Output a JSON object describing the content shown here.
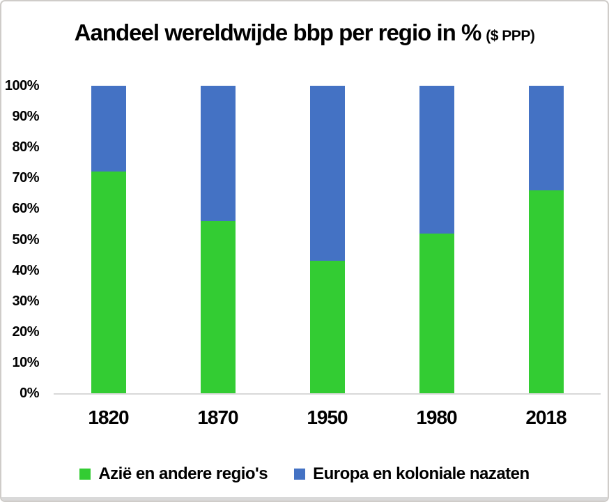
{
  "title": {
    "main": "Aandeel wereldwijde bbp per regio in %",
    "suffix": "($ PPP)"
  },
  "colors": {
    "series_green": "#33cc33",
    "series_blue": "#4472c4",
    "axis_line": "#d9d9d9",
    "text": "#000000"
  },
  "chart_data": {
    "type": "bar",
    "stacked": true,
    "title": "Aandeel wereldwijde bbp per regio in % ($ PPP)",
    "categories": [
      "1820",
      "1870",
      "1950",
      "1980",
      "2018"
    ],
    "series": [
      {
        "name": "Azië en andere regio's",
        "color": "#33cc33",
        "values": [
          72,
          56,
          43,
          52,
          66
        ]
      },
      {
        "name": "Europa en koloniale nazaten",
        "color": "#4472c4",
        "values": [
          28,
          44,
          57,
          48,
          34
        ]
      }
    ],
    "xlabel": "",
    "ylabel": "",
    "ylim": [
      0,
      100
    ],
    "ytick_step": 10,
    "ytick_labels_top_to_bottom": [
      "100%",
      "90%",
      "80%",
      "70%",
      "60%",
      "50%",
      "40%",
      "30%",
      "20%",
      "10%",
      "0%"
    ],
    "grid": false,
    "legend_position": "bottom"
  }
}
